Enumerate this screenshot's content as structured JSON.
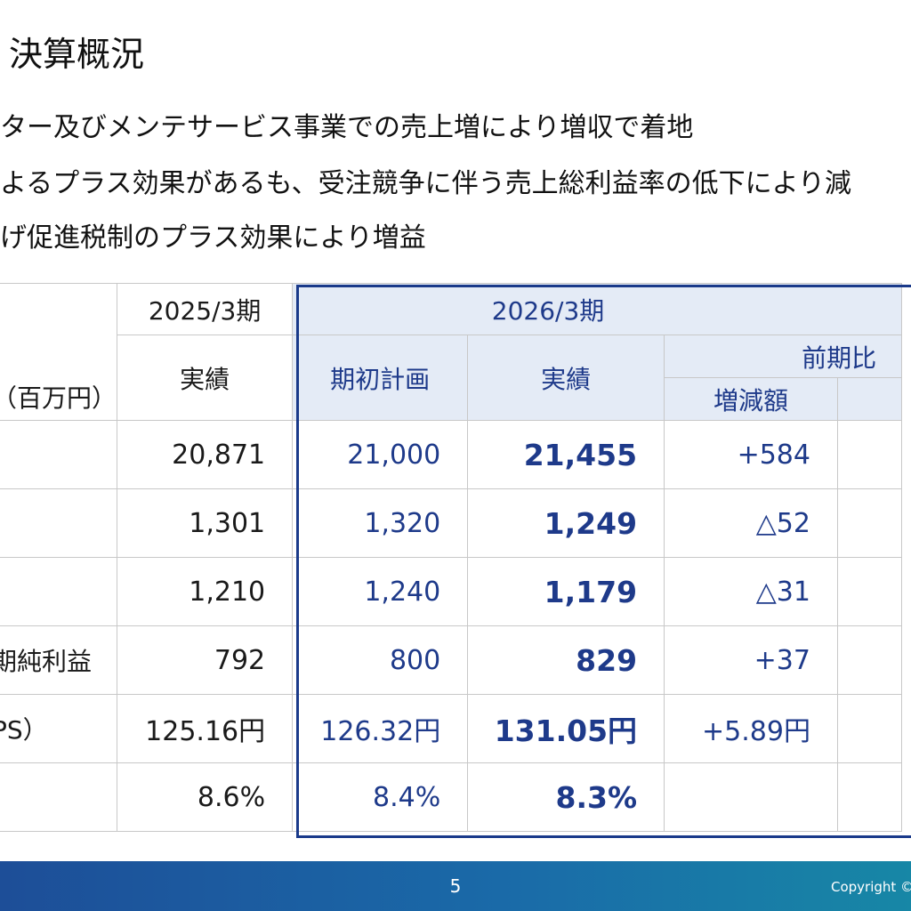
{
  "title": "決算概況",
  "bullets": [
    "ター及びメンテサービス事業での売上増により増収で着地",
    "よるプラス効果があるも、受注競争に伴う売上総利益率の低下により減",
    "げ促進税制のプラス効果により増益"
  ],
  "table": {
    "unit": "（百万円）",
    "period_prev": "2025/3期",
    "period_curr": "2026/3期",
    "col_prev_actual": "実績",
    "col_plan": "期初計画",
    "col_actual": "実績",
    "col_yoy": "前期比",
    "col_change": "増減額",
    "rows": [
      {
        "label": "",
        "prev": "20,871",
        "plan": "21,000",
        "actual": "21,455",
        "change": "+584"
      },
      {
        "label": "",
        "prev": "1,301",
        "plan": "1,320",
        "actual": "1,249",
        "change": "△52"
      },
      {
        "label": "",
        "prev": "1,210",
        "plan": "1,240",
        "actual": "1,179",
        "change": "△31"
      },
      {
        "label": "期純利益",
        "prev": "792",
        "plan": "800",
        "actual": "829",
        "change": "+37"
      },
      {
        "label": "PS）",
        "prev": "125.16円",
        "plan": "126.32円",
        "actual": "131.05円",
        "change": "+5.89円"
      },
      {
        "label": "",
        "prev": "8.6%",
        "plan": "8.4%",
        "actual": "8.3%",
        "change": ""
      }
    ]
  },
  "footer": {
    "page_number": "5",
    "copyright": "Copyright ©"
  },
  "colors": {
    "accent_navy": "#1e3a8a",
    "header_fill": "#e4ebf6",
    "footer_gradient_start": "#1d4e98",
    "footer_gradient_end": "#1787a6"
  }
}
